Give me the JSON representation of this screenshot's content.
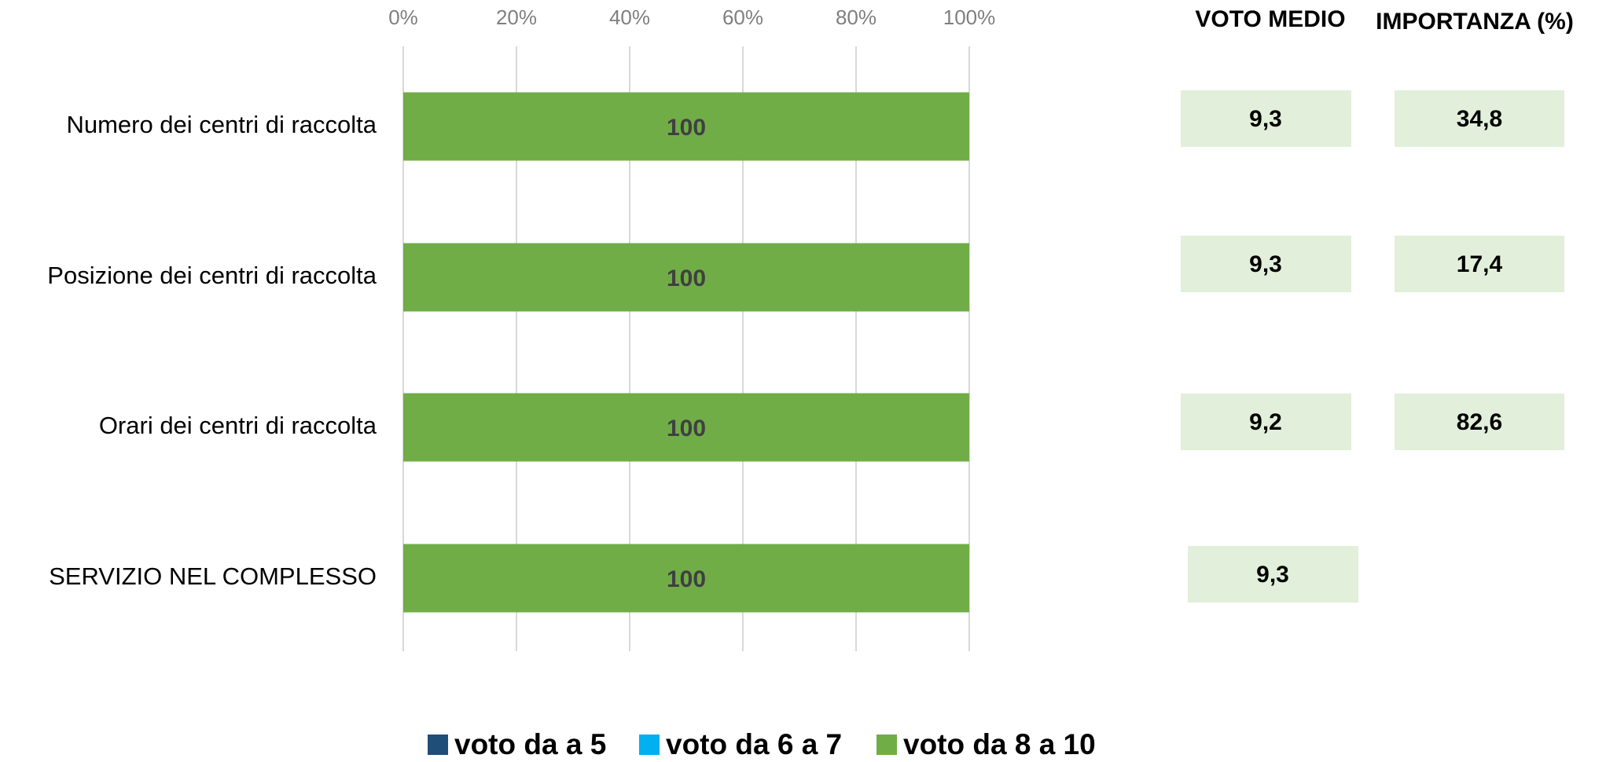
{
  "chart_data": {
    "type": "stacked_bar_horizontal",
    "categories": [
      "Numero dei centri di raccolta",
      "Posizione dei centri di raccolta",
      "Orari dei centri di raccolta",
      "SERVIZIO NEL COMPLESSO"
    ],
    "series": [
      {
        "name": "voto da a 5",
        "color": "#1f4e79",
        "values": [
          0,
          0,
          0,
          0
        ]
      },
      {
        "name": "voto da 6 a 7",
        "color": "#00b0f0",
        "values": [
          0,
          0,
          0,
          0
        ]
      },
      {
        "name": "voto da 8 a 10",
        "color": "#70ad47",
        "values": [
          100,
          100,
          100,
          100
        ]
      }
    ],
    "xlim": [
      0,
      100
    ],
    "xticks": [
      {
        "value": 0,
        "label": "0%"
      },
      {
        "value": 20,
        "label": "20%"
      },
      {
        "value": 40,
        "label": "40%"
      },
      {
        "value": 60,
        "label": "60%"
      },
      {
        "value": 80,
        "label": "80%"
      },
      {
        "value": 100,
        "label": "100%"
      }
    ],
    "grid": true,
    "legend": "bottom",
    "voto_medio": {
      "title": "VOTO MEDIO",
      "values": [
        "9,3",
        "9,3",
        "9,2",
        "9,3"
      ]
    },
    "importanza": {
      "title": "IMPORTANZA (%)",
      "values": [
        "34,8",
        "17,4",
        "82,6",
        null
      ]
    }
  }
}
